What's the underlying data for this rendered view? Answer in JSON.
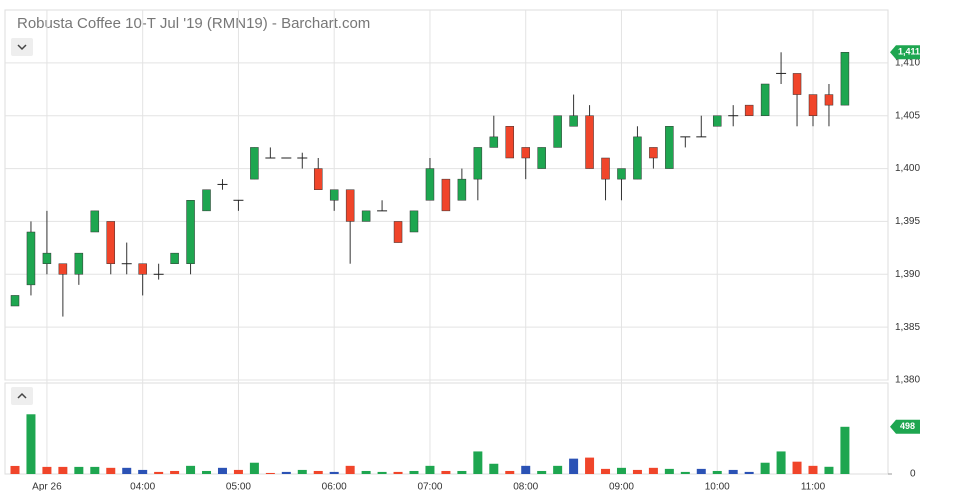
{
  "chart_data": {
    "type": "candlestick",
    "title": "Robusta Coffee 10-T Jul '19 (RMN19) - Barchart.com",
    "x": [
      "02:40",
      "02:50",
      "03:00",
      "03:10",
      "03:20",
      "03:30",
      "03:40",
      "03:50",
      "04:00",
      "04:10",
      "04:20",
      "04:30",
      "04:40",
      "04:50",
      "05:00",
      "05:10",
      "05:20",
      "05:30",
      "05:40",
      "05:50",
      "06:00",
      "06:10",
      "06:20",
      "06:30",
      "06:40",
      "06:50",
      "07:00",
      "07:10",
      "07:20",
      "07:30",
      "07:40",
      "07:50",
      "08:00",
      "08:10",
      "08:20",
      "08:30",
      "08:40",
      "08:50",
      "09:00",
      "09:10",
      "09:20",
      "09:30",
      "09:40",
      "09:50",
      "10:00",
      "10:10",
      "10:20",
      "10:30",
      "10:40",
      "10:50",
      "11:00",
      "11:10",
      "11:20"
    ],
    "open": [
      1387,
      1389,
      1391,
      1391,
      1390,
      1394,
      1395,
      1391,
      1391,
      1390,
      1391,
      1391,
      1396,
      1398.5,
      1397,
      1399,
      1401,
      1401,
      1401,
      1400,
      1397,
      1398,
      1395,
      1396,
      1395,
      1394,
      1397,
      1399,
      1397,
      1399,
      1402,
      1404,
      1402,
      1400,
      1402,
      1404,
      1405,
      1401,
      1399,
      1399,
      1402,
      1400,
      1403,
      1403,
      1404,
      1405,
      1406,
      1405,
      1409,
      1409,
      1407,
      1407,
      1406
    ],
    "high": [
      1388,
      1395,
      1396,
      1391,
      1392,
      1396,
      1395,
      1393,
      1391,
      1391,
      1392,
      1397,
      1398,
      1399,
      1397,
      1402,
      1402,
      1401,
      1401.5,
      1401,
      1398,
      1398,
      1396,
      1397,
      1395,
      1396,
      1401,
      1399,
      1400,
      1402,
      1405,
      1404,
      1402,
      1402,
      1405,
      1407,
      1406,
      1401,
      1400,
      1404,
      1402,
      1404,
      1403,
      1405,
      1405,
      1406,
      1406,
      1408,
      1411,
      1409,
      1407,
      1408,
      1411
    ],
    "low": [
      1387,
      1388,
      1390,
      1386,
      1389,
      1394,
      1390,
      1390,
      1388,
      1389.5,
      1391,
      1390,
      1396,
      1398,
      1396,
      1399,
      1401,
      1401,
      1400,
      1398,
      1396,
      1391,
      1395,
      1396,
      1393,
      1394,
      1397,
      1396,
      1397,
      1397,
      1402,
      1401,
      1399,
      1400,
      1402,
      1404,
      1400,
      1397,
      1397,
      1399,
      1400,
      1400,
      1402,
      1403,
      1404,
      1404,
      1405,
      1405,
      1408,
      1404,
      1404,
      1404,
      1406
    ],
    "close": [
      1388,
      1394,
      1392,
      1390,
      1392,
      1396,
      1391,
      1391,
      1390,
      1390,
      1392,
      1397,
      1398,
      1398.5,
      1397,
      1402,
      1401,
      1401,
      1401,
      1398,
      1398,
      1395,
      1396,
      1396,
      1393,
      1396,
      1400,
      1396,
      1399,
      1402,
      1403,
      1401,
      1401,
      1402,
      1405,
      1405,
      1400,
      1399,
      1400,
      1403,
      1401,
      1404,
      1403,
      1403,
      1405,
      1405,
      1405,
      1408,
      1409,
      1407,
      1405,
      1406,
      1411
    ],
    "close_label": "1,411",
    "volume": [
      85,
      630,
      75,
      75,
      75,
      75,
      65,
      65,
      43,
      22,
      32,
      86,
      32,
      65,
      43,
      119,
      11,
      22,
      43,
      32,
      22,
      86,
      32,
      22,
      22,
      32,
      86,
      32,
      32,
      238,
      108,
      32,
      86,
      32,
      86,
      162,
      173,
      54,
      65,
      43,
      65,
      54,
      22,
      54,
      32,
      43,
      22,
      119,
      238,
      130,
      86,
      76,
      498
    ],
    "volume_colors": [
      "#f0452a",
      "#1ea650",
      "#f0452a",
      "#f0452a",
      "#1ea650",
      "#1ea650",
      "#f0452a",
      "#2b52b5",
      "#2b52b5",
      "#f0452a",
      "#f0452a",
      "#1ea650",
      "#1ea650",
      "#2b52b5",
      "#f0452a",
      "#1ea650",
      "#f0452a",
      "#2b52b5",
      "#1ea650",
      "#f0452a",
      "#2b52b5",
      "#f0452a",
      "#1ea650",
      "#1ea650",
      "#f0452a",
      "#1ea650",
      "#1ea650",
      "#f0452a",
      "#1ea650",
      "#1ea650",
      "#1ea650",
      "#f0452a",
      "#2b52b5",
      "#1ea650",
      "#1ea650",
      "#2b52b5",
      "#f0452a",
      "#f0452a",
      "#1ea650",
      "#f0452a",
      "#f0452a",
      "#1ea650",
      "#1ea650",
      "#2b52b5",
      "#1ea650",
      "#2b52b5",
      "#2b52b5",
      "#1ea650",
      "#1ea650",
      "#f0452a",
      "#f0452a",
      "#1ea650",
      "#1ea650"
    ],
    "up_color": "#1ea650",
    "down_color": "#f0452a",
    "ylim": [
      1380,
      1415
    ],
    "yticks": [
      {
        "value": 1380,
        "label": "1,380"
      },
      {
        "value": 1385,
        "label": "1,385"
      },
      {
        "value": 1390,
        "label": "1,390"
      },
      {
        "value": 1395,
        "label": "1,395"
      },
      {
        "value": 1400,
        "label": "1,400"
      },
      {
        "value": 1405,
        "label": "1,405"
      },
      {
        "value": 1410,
        "label": "1,410"
      }
    ],
    "volume_ylim": [
      0,
      960
    ],
    "volume_yticks": [
      0
    ],
    "xticks": [
      {
        "value": "03:00",
        "label": "Apr 26"
      },
      "04:00",
      "05:00",
      "06:00",
      "07:00",
      "08:00",
      "09:00",
      "10:00",
      "11:00"
    ],
    "grid": true
  }
}
